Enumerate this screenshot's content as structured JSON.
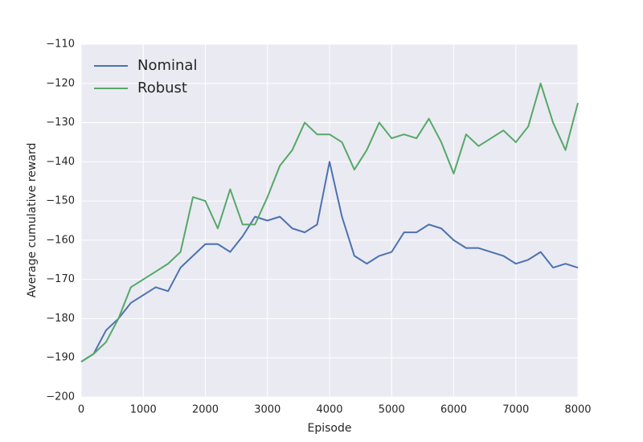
{
  "chart_data": {
    "type": "line",
    "x_label": "Episode",
    "y_label": "Average cumulative reward",
    "x": [
      0,
      200,
      400,
      600,
      800,
      1000,
      1200,
      1400,
      1600,
      1800,
      2000,
      2200,
      2400,
      2600,
      2800,
      3000,
      3200,
      3400,
      3600,
      3800,
      4000,
      4200,
      4400,
      4600,
      4800,
      5000,
      5200,
      5400,
      5600,
      5800,
      6000,
      6200,
      6400,
      6600,
      6800,
      7000,
      7200,
      7400,
      7600,
      7800,
      8000
    ],
    "series": [
      {
        "name": "Nominal",
        "color": "#4c72b0",
        "values": [
          -191,
          -189,
          -183,
          -180,
          -176,
          -174,
          -172,
          -173,
          -167,
          -164,
          -161,
          -161,
          -163,
          -159,
          -154,
          -155,
          -154,
          -157,
          -158,
          -156,
          -140,
          -154,
          -164,
          -166,
          -164,
          -163,
          -158,
          -158,
          -156,
          -157,
          -160,
          -162,
          -162,
          -163,
          -164,
          -166,
          -165,
          -163,
          -167,
          -166,
          -167
        ]
      },
      {
        "name": "Robust",
        "color": "#55a868",
        "values": [
          -191,
          -189,
          -186,
          -180,
          -172,
          -170,
          -168,
          -166,
          -163,
          -149,
          -150,
          -157,
          -147,
          -156,
          -156,
          -149,
          -141,
          -137,
          -130,
          -133,
          -133,
          -135,
          -142,
          -137,
          -130,
          -134,
          -133,
          -134,
          -129,
          -135,
          -143,
          -133,
          -136,
          -134,
          -132,
          -135,
          -131,
          -120,
          -130,
          -137,
          -125
        ]
      }
    ],
    "xlim": [
      0,
      8000
    ],
    "xticks": [
      0,
      1000,
      2000,
      3000,
      4000,
      5000,
      6000,
      7000,
      8000
    ],
    "ylim": [
      -200,
      -110
    ],
    "yticks": [
      {
        "value": -200,
        "label": "−200"
      },
      {
        "value": -190,
        "label": "−190"
      },
      {
        "value": -180,
        "label": "−180"
      },
      {
        "value": -170,
        "label": "−170"
      },
      {
        "value": -160,
        "label": "−160"
      },
      {
        "value": -150,
        "label": "−150"
      },
      {
        "value": -140,
        "label": "−140"
      },
      {
        "value": -130,
        "label": "−130"
      },
      {
        "value": -120,
        "label": "−120"
      },
      {
        "value": -110,
        "label": "−110"
      }
    ],
    "grid": true,
    "legend": "upper-left"
  }
}
